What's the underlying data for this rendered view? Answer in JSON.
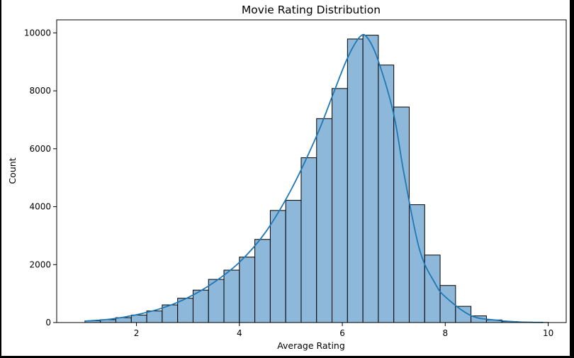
{
  "chart_data": {
    "type": "bar",
    "title": "Movie Rating Distribution",
    "xlabel": "Average Rating",
    "ylabel": "Count",
    "xlim": [
      0.45,
      10.35
    ],
    "ylim": [
      0,
      10450
    ],
    "xticks": [
      2,
      4,
      6,
      8,
      10
    ],
    "yticks": [
      0,
      2000,
      4000,
      6000,
      8000,
      10000
    ],
    "bin_edges": [
      1.0,
      1.3,
      1.6,
      1.9,
      2.2,
      2.5,
      2.8,
      3.1,
      3.4,
      3.7,
      4.0,
      4.3,
      4.6,
      4.9,
      5.2,
      5.5,
      5.8,
      6.1,
      6.4,
      6.7,
      7.0,
      7.3,
      7.6,
      7.9,
      8.2,
      8.5,
      8.8,
      9.1,
      9.4,
      9.7,
      10.0
    ],
    "values": [
      60,
      100,
      170,
      260,
      400,
      610,
      840,
      1120,
      1490,
      1810,
      2260,
      2870,
      3870,
      4220,
      5690,
      7040,
      8080,
      9790,
      9920,
      8890,
      7440,
      4070,
      2330,
      1280,
      560,
      230,
      90,
      35,
      15,
      5
    ],
    "kde": {
      "x": [
        1.0,
        1.5,
        2.0,
        2.5,
        3.0,
        3.5,
        4.0,
        4.5,
        5.0,
        5.5,
        5.8,
        6.1,
        6.35,
        6.5,
        6.7,
        7.0,
        7.2,
        7.5,
        7.8,
        8.0,
        8.5,
        9.0,
        9.5,
        9.9
      ],
      "y": [
        50,
        120,
        270,
        500,
        860,
        1380,
        2080,
        3100,
        4570,
        6440,
        7790,
        9130,
        9880,
        9800,
        9030,
        7180,
        5120,
        2520,
        1360,
        890,
        240,
        80,
        15,
        5
      ]
    },
    "bar_color": "#8db8da",
    "bar_edge_color": "#000000",
    "kde_color": "#1f77b4",
    "grid": false,
    "legend": "none"
  }
}
